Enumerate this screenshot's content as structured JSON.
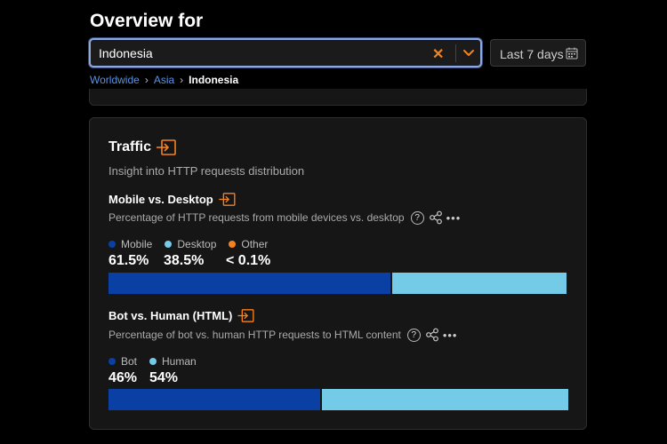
{
  "header": {
    "title": "Overview for"
  },
  "location_select": {
    "value": "Indonesia"
  },
  "date_range": {
    "label": "Last 7 days"
  },
  "breadcrumb": {
    "items": [
      "Worldwide",
      "Asia",
      "Indonesia"
    ]
  },
  "colors": {
    "accent": "#f6821f",
    "mobile": "#0a3fa3",
    "desktop": "#73cbe8",
    "other": "#f6821f",
    "bot": "#0a3fa3",
    "human": "#73cbe8"
  },
  "traffic": {
    "title": "Traffic",
    "description": "Insight into HTTP requests distribution",
    "mobile_desktop": {
      "title": "Mobile vs. Desktop",
      "description": "Percentage of HTTP requests from mobile devices vs. desktop",
      "legend": [
        "Mobile",
        "Desktop",
        "Other"
      ],
      "values": [
        "61.5%",
        "38.5%",
        "< 0.1%"
      ],
      "shares": [
        61.5,
        38.5,
        0
      ]
    },
    "bot_human": {
      "title": "Bot vs. Human (HTML)",
      "description": "Percentage of bot vs. human HTTP requests to HTML content",
      "legend": [
        "Bot",
        "Human"
      ],
      "values": [
        "46%",
        "54%"
      ],
      "shares": [
        46,
        54
      ]
    }
  },
  "icons": {
    "clear": "close-icon",
    "dropdown": "chevron-down-icon",
    "calendar": "calendar-icon",
    "expand": "expand-icon",
    "help": "help-icon",
    "share": "share-icon",
    "more": "more-icon"
  }
}
